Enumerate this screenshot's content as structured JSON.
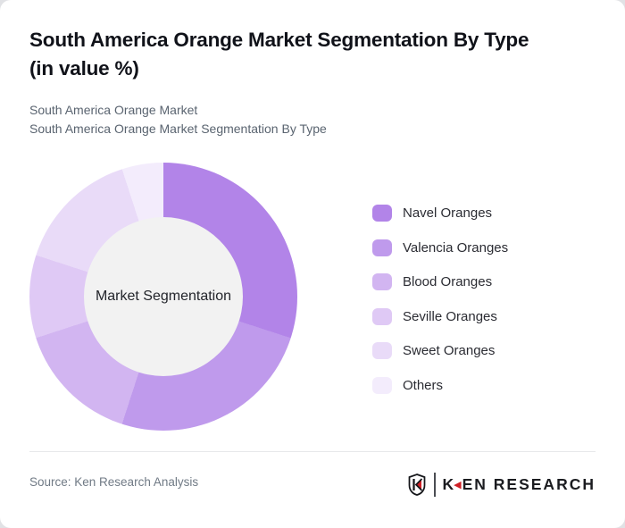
{
  "page": {
    "background": "#e1e2e5",
    "card_background": "#ffffff"
  },
  "header": {
    "title_line1": "South America Orange Market Segmentation By Type",
    "title_line2": "(in value %)",
    "subtitle_line1": "South America Orange Market",
    "subtitle_line2": "South America Orange Market Segmentation By Type"
  },
  "chart_data": {
    "type": "pie",
    "donut": true,
    "inner_radius_ratio": 0.59,
    "start_angle_deg": 0,
    "unit": "%",
    "center_label": "Market Segmentation",
    "center_color": "#f2f2f2",
    "legend_position": "right",
    "series": [
      {
        "name": "Navel Oranges",
        "value": 30,
        "color": "#b284e8"
      },
      {
        "name": "Valencia Oranges",
        "value": 25,
        "color": "#bf9aec"
      },
      {
        "name": "Blood Oranges",
        "value": 15,
        "color": "#d2b5f1"
      },
      {
        "name": "Seville Oranges",
        "value": 10,
        "color": "#dfc9f5"
      },
      {
        "name": "Sweet Oranges",
        "value": 15,
        "color": "#e9dbf8"
      },
      {
        "name": "Others",
        "value": 5,
        "color": "#f3ecfc"
      }
    ]
  },
  "footer": {
    "source": "Source: Ken Research Analysis",
    "logo": {
      "shield_letter": "K",
      "wordmark_first_letter": "K",
      "wordmark_rest": "EN RESEARCH",
      "accent_color": "#cf2127"
    }
  }
}
